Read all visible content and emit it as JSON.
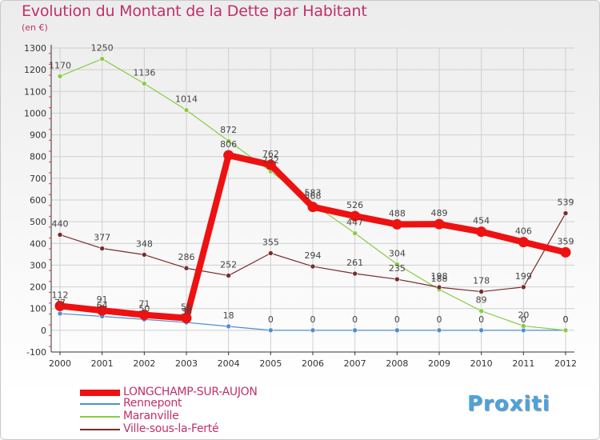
{
  "title": "Evolution du Montant de la Dette par Habitant",
  "subtitle": "(en €)",
  "logo_text": "Proxiti",
  "chart_data": {
    "type": "line",
    "title": "Evolution du Montant de la Dette par Habitant",
    "ylabel": "(en €)",
    "xlabel": "",
    "ylim": [
      -100,
      1300
    ],
    "yticks": [
      -100,
      0,
      100,
      200,
      300,
      400,
      500,
      600,
      700,
      800,
      900,
      1000,
      1100,
      1200,
      1300
    ],
    "categories": [
      "2000",
      "2001",
      "2002",
      "2003",
      "2004",
      "2005",
      "2006",
      "2007",
      "2008",
      "2009",
      "2010",
      "2011",
      "2012"
    ],
    "grid": true,
    "legend_position": "bottom-left",
    "series": [
      {
        "name": "Rennepont",
        "color": "#4d8fd1",
        "values": [
          77,
          64,
          50,
          36,
          18,
          0,
          0,
          0,
          0,
          0,
          0,
          0,
          0
        ]
      },
      {
        "name": "Maranville",
        "color": "#88cc44",
        "values": [
          1170,
          1250,
          1136,
          1014,
          872,
          732,
          583,
          447,
          304,
          188,
          89,
          20,
          0
        ]
      },
      {
        "name": "Ville-sous-la-Ferté",
        "color": "#7a2c2c",
        "values": [
          440,
          377,
          348,
          286,
          252,
          355,
          294,
          261,
          235,
          198,
          178,
          199,
          539
        ]
      },
      {
        "name": "LONGCHAMP-SUR-AUJON",
        "color": "#ee1111",
        "values": [
          112,
          91,
          71,
          56,
          806,
          762,
          568,
          526,
          488,
          489,
          454,
          406,
          359
        ]
      }
    ]
  }
}
